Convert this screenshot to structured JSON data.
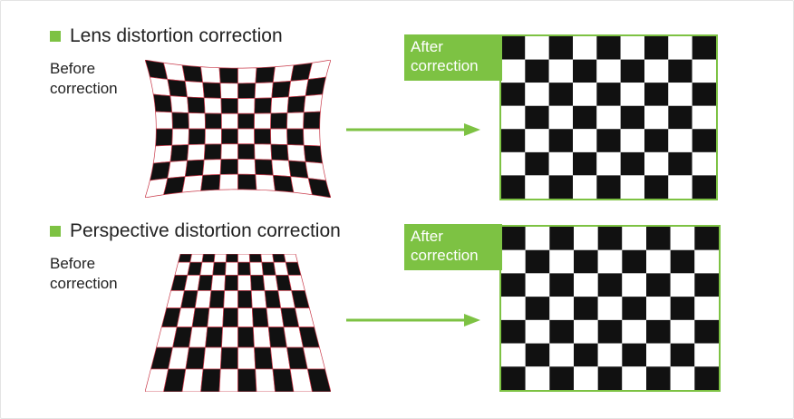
{
  "colors": {
    "accent": "#7dc243",
    "board_dark": "#111111",
    "board_light": "#ffffff",
    "grid_line": "#c93a4a"
  },
  "sections": [
    {
      "id": "lens",
      "title": "Lens distortion correction",
      "before_label_line1": "Before",
      "before_label_line2": "correction",
      "after_label_line1": "After",
      "after_label_line2": "correction",
      "board_cols": 10,
      "board_rows": 8,
      "distortion": "barrel"
    },
    {
      "id": "perspective",
      "title": "Perspective distortion correction",
      "before_label_line1": "Before",
      "before_label_line2": "correction",
      "after_label_line1": "After",
      "after_label_line2": "correction",
      "board_cols": 10,
      "board_rows": 8,
      "distortion": "perspective"
    }
  ]
}
